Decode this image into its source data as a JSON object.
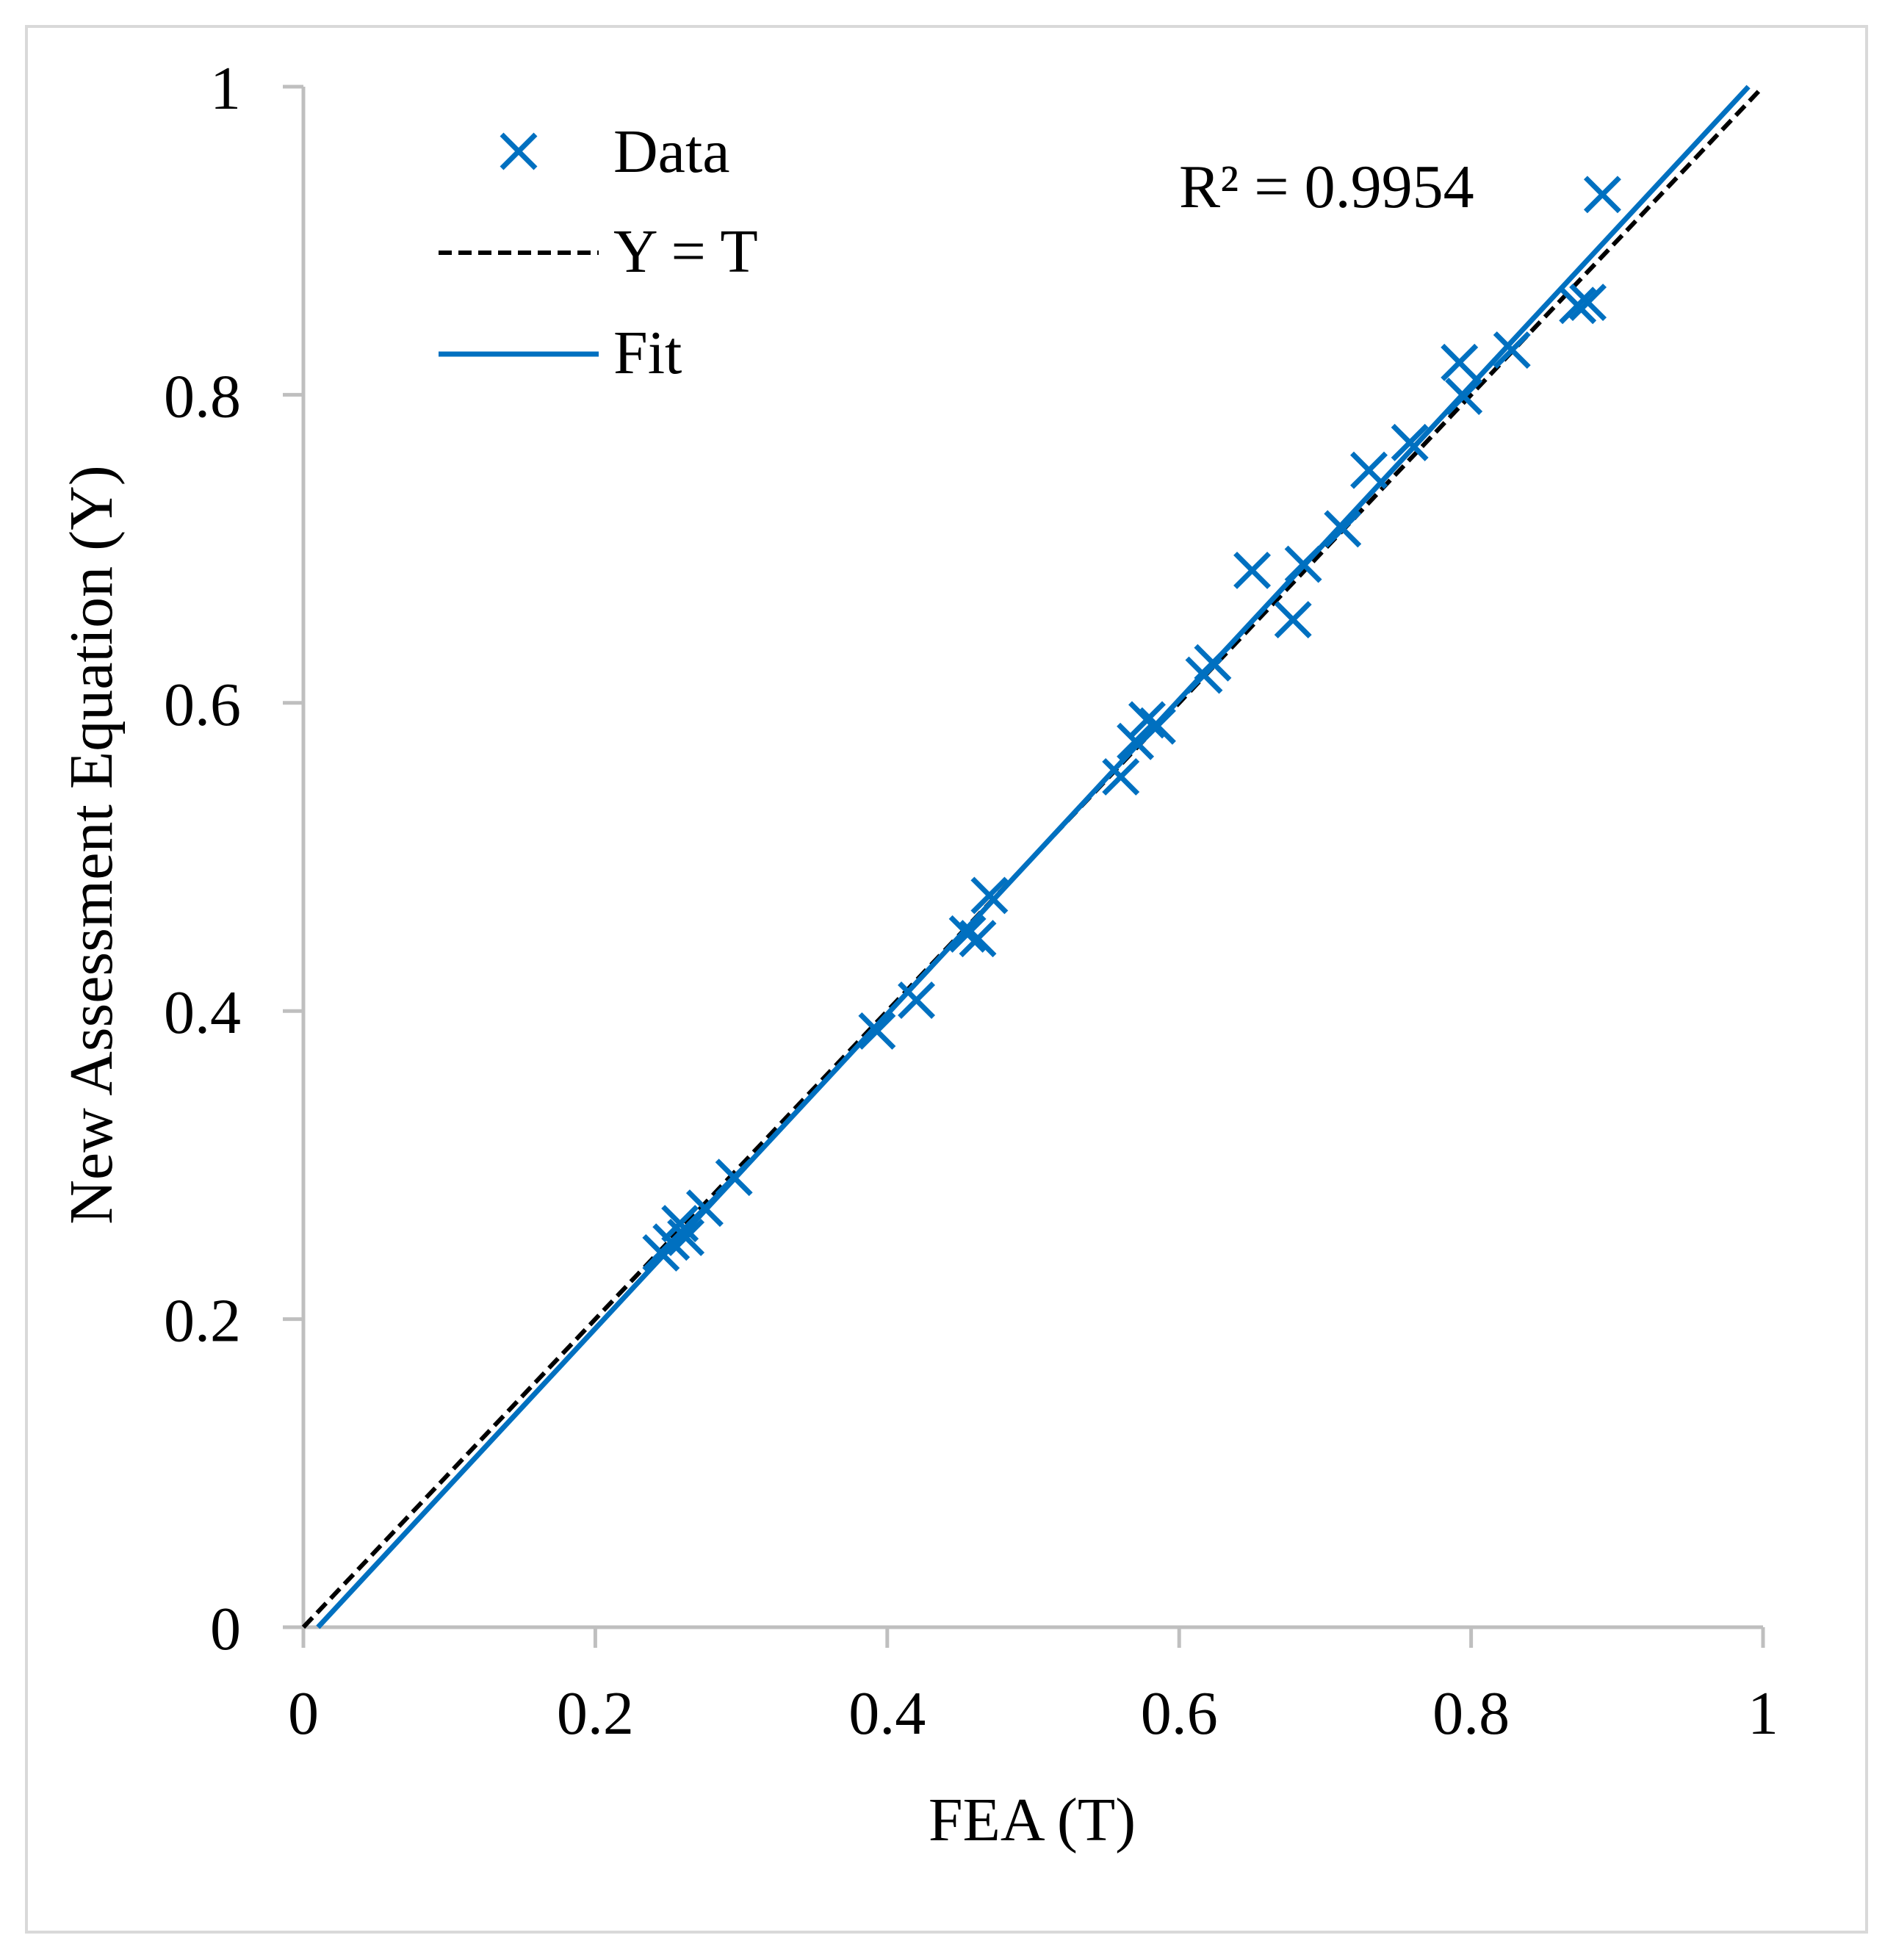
{
  "chart_data": {
    "type": "scatter",
    "title": "",
    "xlabel": "FEA (T)",
    "ylabel": "New Assessment Equation (Y)",
    "xlim": [
      0,
      1
    ],
    "ylim": [
      0,
      1
    ],
    "x_ticks": [
      "0",
      "0.2",
      "0.4",
      "0.6",
      "0.8",
      "1"
    ],
    "y_ticks": [
      "0",
      "0.2",
      "0.4",
      "0.6",
      "0.8",
      "1"
    ],
    "legend": {
      "placement": "top-left",
      "entries": [
        "Data",
        "Y = T",
        "Fit"
      ]
    },
    "annotation": "R² = 0.9954",
    "grid": false,
    "series": [
      {
        "name": "Data",
        "kind": "scatter",
        "marker": "x",
        "color": "#0070c0",
        "points": [
          [
            0.245,
            0.243
          ],
          [
            0.252,
            0.25
          ],
          [
            0.258,
            0.262
          ],
          [
            0.262,
            0.253
          ],
          [
            0.275,
            0.272
          ],
          [
            0.295,
            0.292
          ],
          [
            0.393,
            0.387
          ],
          [
            0.42,
            0.407
          ],
          [
            0.455,
            0.45
          ],
          [
            0.462,
            0.447
          ],
          [
            0.47,
            0.475
          ],
          [
            0.56,
            0.552
          ],
          [
            0.57,
            0.575
          ],
          [
            0.578,
            0.589
          ],
          [
            0.585,
            0.585
          ],
          [
            0.617,
            0.618
          ],
          [
            0.623,
            0.626
          ],
          [
            0.65,
            0.686
          ],
          [
            0.678,
            0.654
          ],
          [
            0.685,
            0.69
          ],
          [
            0.712,
            0.713
          ],
          [
            0.73,
            0.751
          ],
          [
            0.758,
            0.769
          ],
          [
            0.795,
            0.799
          ],
          [
            0.792,
            0.821
          ],
          [
            0.828,
            0.829
          ],
          [
            0.873,
            0.858
          ],
          [
            0.88,
            0.86
          ],
          [
            0.89,
            0.93
          ]
        ]
      },
      {
        "name": "Y = T",
        "kind": "line",
        "style": "dashed",
        "color": "#000000",
        "x": [
          0,
          1
        ],
        "y": [
          0,
          1
        ]
      },
      {
        "name": "Fit",
        "kind": "line",
        "style": "solid",
        "color": "#0070c0",
        "x": [
          0.01,
          0.99
        ],
        "y": [
          0.0,
          1.0
        ]
      }
    ]
  }
}
